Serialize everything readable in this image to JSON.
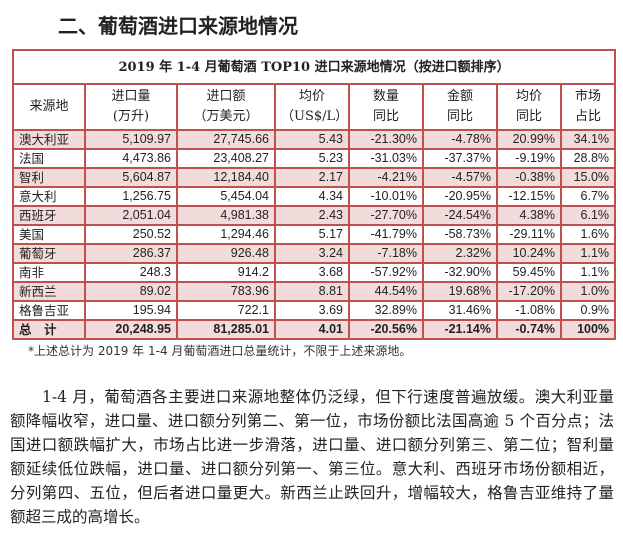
{
  "heading": "二、葡萄酒进口来源地情况",
  "table": {
    "caption": "2019 年 1-4 月葡萄酒 TOP10 进口来源地情况（按进口额排序）",
    "headers": [
      [
        "来源地"
      ],
      [
        "进口量",
        "(万升)"
      ],
      [
        "进口额",
        "（万美元）"
      ],
      [
        "均价",
        "（US$/L）"
      ],
      [
        "数量",
        "同比"
      ],
      [
        "金额",
        "同比"
      ],
      [
        "均价",
        "同比"
      ],
      [
        "市场",
        "占比"
      ]
    ],
    "rows": [
      [
        "澳大利亚",
        "5,109.97",
        "27,745.66",
        "5.43",
        "-21.30%",
        "-4.78%",
        "20.99%",
        "34.1%"
      ],
      [
        "法国",
        "4,473.86",
        "23,408.27",
        "5.23",
        "-31.03%",
        "-37.37%",
        "-9.19%",
        "28.8%"
      ],
      [
        "智利",
        "5,604.87",
        "12,184.40",
        "2.17",
        "-4.21%",
        "-4.57%",
        "-0.38%",
        "15.0%"
      ],
      [
        "意大利",
        "1,256.75",
        "5,454.04",
        "4.34",
        "-10.01%",
        "-20.95%",
        "-12.15%",
        "6.7%"
      ],
      [
        "西班牙",
        "2,051.04",
        "4,981.38",
        "2.43",
        "-27.70%",
        "-24.54%",
        "4.38%",
        "6.1%"
      ],
      [
        "美国",
        "250.52",
        "1,294.46",
        "5.17",
        "-41.79%",
        "-58.73%",
        "-29.11%",
        "1.6%"
      ],
      [
        "葡萄牙",
        "286.37",
        "926.48",
        "3.24",
        "-7.18%",
        "2.32%",
        "10.24%",
        "1.1%"
      ],
      [
        "南非",
        "248.3",
        "914.2",
        "3.68",
        "-57.92%",
        "-32.90%",
        "59.45%",
        "1.1%"
      ],
      [
        "新西兰",
        "89.02",
        "783.96",
        "8.81",
        "44.54%",
        "19.68%",
        "-17.20%",
        "1.0%"
      ],
      [
        "格鲁吉亚",
        "195.94",
        "722.1",
        "3.69",
        "32.89%",
        "31.46%",
        "-1.08%",
        "0.9%"
      ]
    ],
    "total": [
      "总　计",
      "20,248.95",
      "81,285.01",
      "4.01",
      "-20.56%",
      "-21.14%",
      "-0.74%",
      "100%"
    ]
  },
  "footnote": "*上述总计为 2019 年 1-4 月葡萄酒进口总量统计，不限于上述来源地。",
  "paragraph": "1-4 月，葡萄酒各主要进口来源地整体仍泛绿，但下行速度普遍放缓。澳大利亚量额降幅收窄，进口量、进口额分列第二、第一位，市场份额比法国高逾 5 个百分点；法国进口额跌幅扩大，市场占比进一步滑落，进口量、进口额分列第三、第二位；智利量额延续低位跌幅，进口量、进口额分列第一、第三位。意大利、西班牙市场份额相近，分列第四、五位，但后者进口量更大。新西兰止跌回升，增幅较大，格鲁吉亚维持了量额超三成的高增长。"
}
